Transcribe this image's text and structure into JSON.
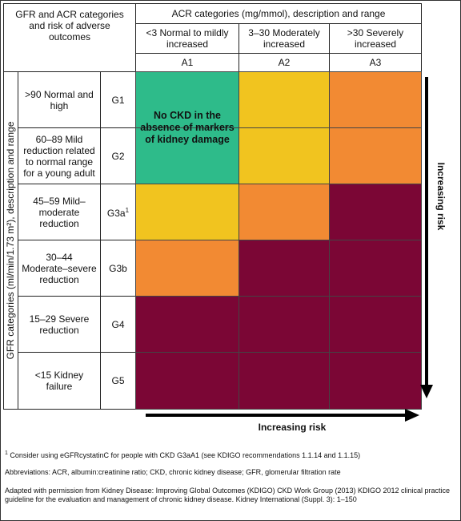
{
  "header": {
    "corner": "GFR and ACR categories and risk of adverse outcomes",
    "acr_title": "ACR categories (mg/mmol), description and range",
    "acr_columns": [
      {
        "desc": "<3 Normal to mildly increased",
        "code": "A1"
      },
      {
        "desc": "3–30 Moderately increased",
        "code": "A2"
      },
      {
        "desc": ">30 Severely increased",
        "code": "A3"
      }
    ]
  },
  "gfr_axis_label": "GFR categories (ml/min/1.73 m²), description and range",
  "gfr_rows": [
    {
      "desc": ">90 Normal and high",
      "code": "G1"
    },
    {
      "desc": "60–89 Mild reduction related to normal range for a young adult",
      "code": "G2"
    },
    {
      "desc": "45–59 Mild–moderate reduction",
      "code": "G3a",
      "sup": "1"
    },
    {
      "desc": "30–44 Moderate–severe reduction",
      "code": "G3b"
    },
    {
      "desc": "15–29 Severe reduction",
      "code": "G4"
    },
    {
      "desc": "<15 Kidney failure",
      "code": "G5"
    }
  ],
  "risk_colors": {
    "green": "#2ebb8a",
    "yellow": "#f1c41f",
    "orange": "#f28a33",
    "red": "#7b0635"
  },
  "grid_colors": [
    [
      "green",
      "yellow",
      "orange"
    ],
    [
      "green",
      "yellow",
      "orange"
    ],
    [
      "yellow",
      "orange",
      "red"
    ],
    [
      "orange",
      "red",
      "red"
    ],
    [
      "red",
      "red",
      "red"
    ],
    [
      "red",
      "red",
      "red"
    ]
  ],
  "no_ckd_message": "No CKD in the absence of markers of kidney damage",
  "risk_vertical": "Increasing risk",
  "risk_horizontal": "Increasing risk",
  "footnotes": {
    "note1_sup": "1",
    "note1": "Consider using eGFRcystatinC for people with CKD G3aA1 (see KDIGO recommendations 1.1.14 and 1.1.15)",
    "abbreviations": "Abbreviations: ACR, albumin:creatinine ratio; CKD, chronic kidney disease; GFR, glomerular filtration rate",
    "source": "Adapted with permission from Kidney Disease: Improving Global Outcomes (KDIGO) CKD Work Group (2013) KDIGO 2012 clinical practice guideline for the evaluation and management of chronic kidney disease. Kidney International (Suppl. 3): 1–150"
  }
}
